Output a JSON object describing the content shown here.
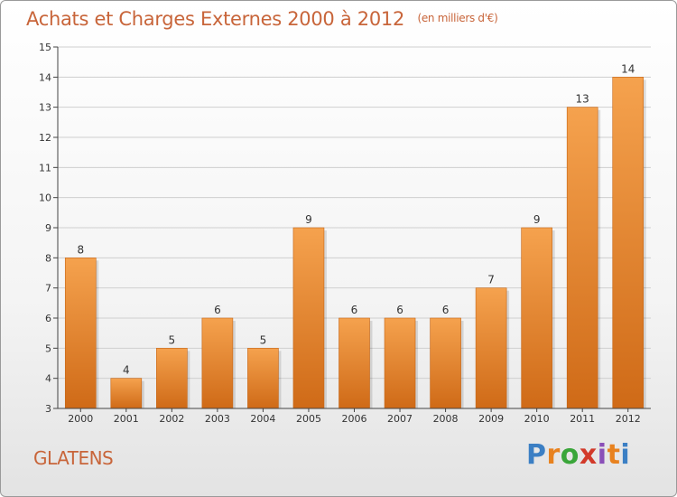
{
  "header": {
    "title": "Achats et Charges Externes 2000 à 2012",
    "subtitle": "(en milliers d'€)"
  },
  "footer": {
    "commune": "GLATENS",
    "brand": {
      "letters": [
        "P",
        "r",
        "o",
        "x",
        "i",
        "t",
        "i"
      ],
      "letter_colors": [
        "#3b7fc4",
        "#e8821f",
        "#3aa63a",
        "#d23a2a",
        "#8a4fb8",
        "#e8821f",
        "#3b7fc4"
      ]
    }
  },
  "colors": {
    "bar_top": "#f5a24e",
    "bar_bottom": "#cf6a17",
    "text": "#c8653a",
    "axis": "#444444",
    "grid": "#cfcfcf"
  },
  "chart_data": {
    "type": "bar",
    "categories": [
      "2000",
      "2001",
      "2002",
      "2003",
      "2004",
      "2005",
      "2006",
      "2007",
      "2008",
      "2009",
      "2010",
      "2011",
      "2012"
    ],
    "values": [
      8,
      4,
      5,
      6,
      5,
      9,
      6,
      6,
      6,
      7,
      9,
      13,
      14
    ],
    "data_labels": [
      "8",
      "4",
      "5",
      "6",
      "5",
      "9",
      "6",
      "6",
      "6",
      "7",
      "9",
      "13",
      "14"
    ],
    "title": "Achats et Charges Externes 2000 à 2012",
    "xlabel": "",
    "ylabel": "",
    "ylim": [
      3,
      15
    ],
    "yticks": [
      "3",
      "4",
      "5",
      "6",
      "7",
      "8",
      "9",
      "10",
      "11",
      "12",
      "13",
      "14",
      "15"
    ],
    "grid": true,
    "legend": "none"
  }
}
